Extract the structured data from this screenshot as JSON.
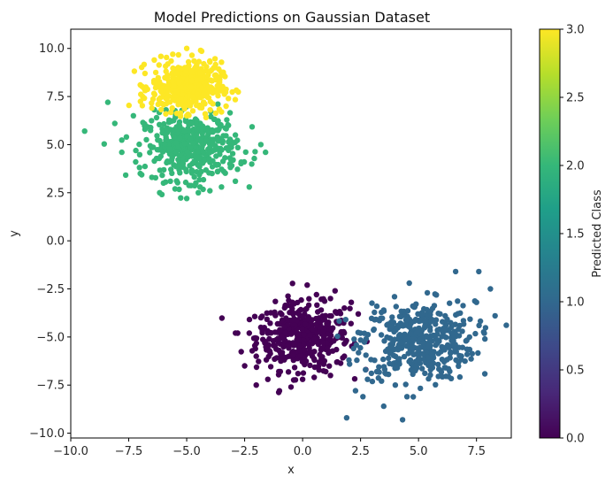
{
  "chart_data": {
    "type": "scatter",
    "title": "Model Predictions on Gaussian Dataset",
    "xlabel": "x",
    "ylabel": "y",
    "xlim": [
      -10,
      9
    ],
    "ylim": [
      -10.25,
      11
    ],
    "x_ticks": [
      -10.0,
      -7.5,
      -5.0,
      -2.5,
      0.0,
      2.5,
      5.0,
      7.5
    ],
    "x_tick_labels": [
      "−10.0",
      "−7.5",
      "−5.0",
      "−2.5",
      "0.0",
      "2.5",
      "5.0",
      "7.5"
    ],
    "y_ticks": [
      -10.0,
      -7.5,
      -5.0,
      -2.5,
      0.0,
      2.5,
      5.0,
      7.5,
      10.0
    ],
    "y_tick_labels": [
      "−10.0",
      "−7.5",
      "−5.0",
      "−2.5",
      "0.0",
      "2.5",
      "5.0",
      "7.5",
      "10.0"
    ],
    "grid": false,
    "colormap": "viridis",
    "colorbar": {
      "label": "Predicted Class",
      "range": [
        0,
        3
      ],
      "ticks": [
        0.0,
        0.5,
        1.0,
        1.5,
        2.0,
        2.5,
        3.0
      ],
      "tick_labels": [
        "0.0",
        "0.5",
        "1.0",
        "1.5",
        "2.0",
        "2.5",
        "3.0"
      ],
      "stops": [
        "#440154",
        "#482878",
        "#3e4989",
        "#31688e",
        "#26828e",
        "#1f9e89",
        "#35b779",
        "#6ece58",
        "#b5de2b",
        "#fde725"
      ]
    },
    "series": [
      {
        "class": 0,
        "color": "#440154",
        "center": [
          0,
          -5
        ],
        "spread": 1.0,
        "points": [
          [
            0.2,
            -2.3
          ],
          [
            0.6,
            -2.8
          ],
          [
            -0.6,
            -3.1
          ],
          [
            1.2,
            -3.0
          ],
          [
            1.8,
            -3.5
          ],
          [
            2.4,
            -3.8
          ],
          [
            2.1,
            -3.2
          ],
          [
            -1.2,
            -3.8
          ],
          [
            -2.3,
            -4.8
          ],
          [
            -2.8,
            -4.8
          ],
          [
            -1.8,
            -4.5
          ],
          [
            -1.5,
            -5.5
          ],
          [
            -2.0,
            -6.0
          ],
          [
            -2.5,
            -6.5
          ],
          [
            -2.0,
            -7.5
          ],
          [
            -1.5,
            -7.2
          ],
          [
            -1.0,
            -7.8
          ],
          [
            -0.5,
            -7.6
          ],
          [
            0.0,
            -7.2
          ],
          [
            0.5,
            -7.1
          ],
          [
            1.0,
            -6.8
          ],
          [
            1.5,
            -6.3
          ],
          [
            1.8,
            -6.0
          ],
          [
            1.2,
            -7.0
          ],
          [
            -0.2,
            -6.9
          ],
          [
            0.8,
            -3.6
          ],
          [
            1.6,
            -4.2
          ],
          [
            1.4,
            -2.6
          ]
        ]
      },
      {
        "class": 1,
        "color": "#31688e",
        "center": [
          5,
          -5.2
        ],
        "spread": 1.2,
        "points": [
          [
            8.3,
            -3.9
          ],
          [
            8.1,
            -2.5
          ],
          [
            7.6,
            -1.6
          ],
          [
            6.6,
            -1.6
          ],
          [
            4.6,
            -2.2
          ],
          [
            3.2,
            -3.4
          ],
          [
            3.5,
            -3.6
          ],
          [
            2.5,
            -4.8
          ],
          [
            2.2,
            -5.6
          ],
          [
            2.0,
            -6.2
          ],
          [
            2.8,
            -7.2
          ],
          [
            2.6,
            -8.1
          ],
          [
            3.5,
            -8.6
          ],
          [
            1.9,
            -9.2
          ],
          [
            4.5,
            -8.1
          ],
          [
            5.6,
            -6.6
          ],
          [
            6.8,
            -6.0
          ],
          [
            7.2,
            -5.0
          ],
          [
            7.5,
            -3.2
          ],
          [
            3.2,
            -6.8
          ],
          [
            4.0,
            -7.5
          ]
        ]
      },
      {
        "class": 2,
        "color": "#35b779",
        "center": [
          -4.8,
          4.9
        ],
        "spread": 1.0,
        "points": [
          [
            -9.4,
            5.7
          ],
          [
            -8.4,
            7.2
          ],
          [
            -8.1,
            6.1
          ],
          [
            -7.6,
            5.4
          ],
          [
            -7.8,
            4.6
          ],
          [
            -7.2,
            4.1
          ],
          [
            -7.0,
            3.5
          ],
          [
            -6.5,
            3.3
          ],
          [
            -6.0,
            3.0
          ],
          [
            -5.5,
            2.7
          ],
          [
            -5.0,
            2.2
          ],
          [
            -4.5,
            2.5
          ],
          [
            -4.0,
            2.6
          ],
          [
            -3.5,
            2.8
          ],
          [
            -2.9,
            3.1
          ],
          [
            -2.3,
            2.8
          ],
          [
            -1.8,
            5.0
          ],
          [
            -1.6,
            4.6
          ],
          [
            -3.2,
            6.0
          ],
          [
            -2.9,
            5.5
          ],
          [
            -7.3,
            6.5
          ],
          [
            -6.8,
            5.8
          ],
          [
            -3.0,
            4.2
          ],
          [
            -3.4,
            3.6
          ],
          [
            -6.3,
            6.4
          ]
        ]
      },
      {
        "class": 3,
        "color": "#fde725",
        "center": [
          -5,
          8.0
        ],
        "spread": 0.75,
        "points": [
          [
            -5.0,
            10.0
          ],
          [
            -4.4,
            9.9
          ],
          [
            -5.6,
            9.7
          ],
          [
            -6.4,
            9.4
          ],
          [
            -6.8,
            8.7
          ],
          [
            -7.0,
            8.1
          ],
          [
            -6.9,
            7.5
          ],
          [
            -6.5,
            6.9
          ],
          [
            -5.9,
            6.6
          ],
          [
            -5.0,
            6.5
          ],
          [
            -4.2,
            6.6
          ],
          [
            -3.5,
            6.7
          ],
          [
            -3.3,
            7.0
          ],
          [
            -3.2,
            7.4
          ],
          [
            -3.6,
            8.4
          ],
          [
            -4.0,
            9.3
          ],
          [
            -3.8,
            9.0
          ]
        ]
      }
    ]
  }
}
